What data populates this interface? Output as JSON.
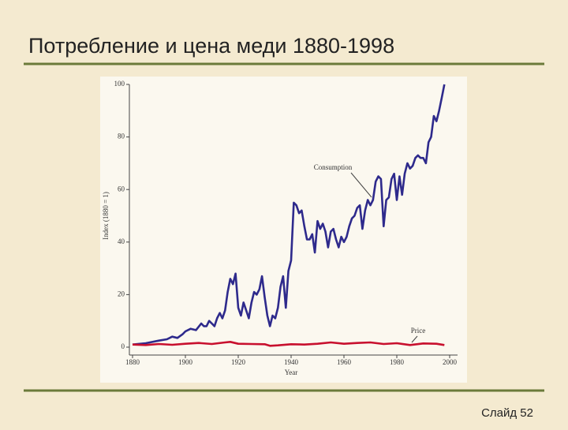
{
  "chart_data": {
    "type": "line",
    "title": "Потребление и цена меди 1880-1998",
    "xlabel": "Year",
    "ylabel": "Index (1880 = 1)",
    "xlim": [
      1880,
      2000
    ],
    "xticks": [
      1880,
      1900,
      1920,
      1940,
      1960,
      1980,
      2000
    ],
    "ylim": [
      0,
      100
    ],
    "yticks": [
      0,
      20,
      40,
      60,
      80,
      100
    ],
    "annotations": [
      "Consumption",
      "Price"
    ],
    "series": [
      {
        "name": "Consumption",
        "color": "#2e2a8c",
        "x": [
          1880,
          1885,
          1890,
          1893,
          1895,
          1897,
          1899,
          1900,
          1902,
          1904,
          1906,
          1907,
          1908,
          1909,
          1910,
          1911,
          1912,
          1913,
          1914,
          1915,
          1916,
          1917,
          1918,
          1919,
          1920,
          1921,
          1922,
          1923,
          1924,
          1925,
          1926,
          1927,
          1928,
          1929,
          1930,
          1931,
          1932,
          1933,
          1934,
          1935,
          1936,
          1937,
          1938,
          1939,
          1940,
          1941,
          1942,
          1943,
          1944,
          1945,
          1946,
          1947,
          1948,
          1949,
          1950,
          1951,
          1952,
          1953,
          1954,
          1955,
          1956,
          1957,
          1958,
          1959,
          1960,
          1961,
          1962,
          1963,
          1964,
          1965,
          1966,
          1967,
          1968,
          1969,
          1970,
          1971,
          1972,
          1973,
          1974,
          1975,
          1976,
          1977,
          1978,
          1979,
          1980,
          1981,
          1982,
          1983,
          1984,
          1985,
          1986,
          1987,
          1988,
          1989,
          1990,
          1991,
          1992,
          1993,
          1994,
          1995,
          1996,
          1997,
          1998
        ],
        "values": [
          1,
          1.5,
          2.5,
          3,
          4,
          3.5,
          5,
          6,
          7,
          6.5,
          9,
          8,
          8,
          10,
          9,
          8,
          11,
          13,
          11,
          14,
          21,
          26,
          24,
          28,
          15,
          12,
          17,
          14,
          11,
          17,
          21,
          20,
          22,
          27,
          19,
          12,
          8,
          12,
          11,
          15,
          23,
          27,
          15,
          29,
          33,
          55,
          54,
          51,
          52,
          46,
          41,
          41,
          43,
          36,
          48,
          45,
          47,
          44,
          38,
          44,
          45,
          41,
          38,
          42,
          40,
          42,
          46,
          49,
          50,
          53,
          54,
          45,
          52,
          56,
          54,
          56,
          63,
          65,
          64,
          46,
          56,
          57,
          64,
          66,
          56,
          65,
          58,
          66,
          70,
          68,
          69,
          72,
          73,
          72,
          72,
          70,
          78,
          80,
          88,
          86,
          90,
          95,
          100
        ]
      },
      {
        "name": "Price",
        "color": "#c8102e",
        "x": [
          1880,
          1885,
          1890,
          1895,
          1900,
          1905,
          1910,
          1915,
          1917,
          1920,
          1925,
          1930,
          1932,
          1935,
          1940,
          1945,
          1950,
          1955,
          1960,
          1965,
          1970,
          1975,
          1980,
          1985,
          1990,
          1995,
          1998
        ],
        "values": [
          1,
          0.8,
          1.2,
          0.9,
          1.3,
          1.6,
          1.2,
          1.8,
          2,
          1.3,
          1.2,
          1.1,
          0.5,
          0.7,
          1.1,
          1,
          1.3,
          1.8,
          1.3,
          1.6,
          1.8,
          1.2,
          1.5,
          0.8,
          1.4,
          1.3,
          0.8
        ]
      }
    ]
  },
  "footer": "Слайд 52"
}
